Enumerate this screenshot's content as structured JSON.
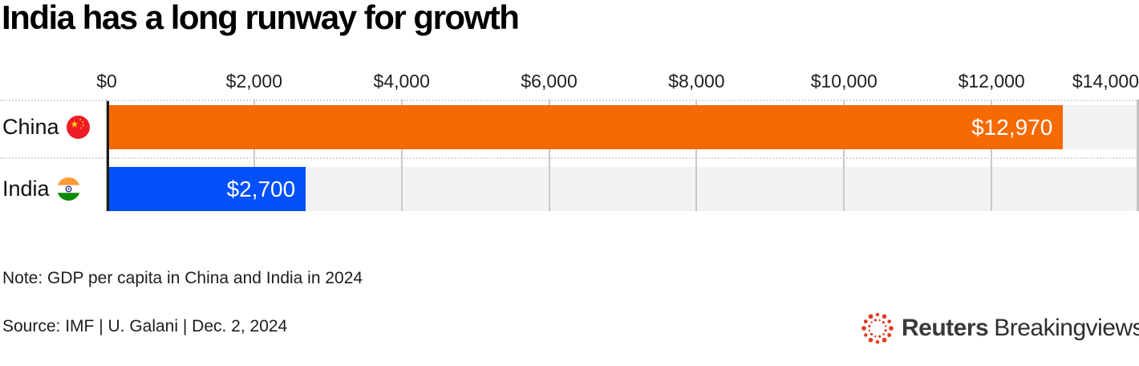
{
  "title": "India has a long runway for growth",
  "chart_data": {
    "type": "bar",
    "orientation": "horizontal",
    "title": "India has a long runway for growth",
    "categories": [
      "China",
      "India"
    ],
    "values": [
      12970,
      2700
    ],
    "value_labels": [
      "$12,970",
      "$2,700"
    ],
    "bar_colors": [
      "#f66a02",
      "#0150fa"
    ],
    "x_ticks": [
      "$0",
      "$2,000",
      "$4,000",
      "$6,000",
      "$8,000",
      "$10,000",
      "$12,000",
      "$14,000"
    ],
    "xlim": [
      0,
      14000
    ],
    "grid": true,
    "legend": "none",
    "note": "GDP per capita in China and India in 2024"
  },
  "rows": [
    {
      "label": "China",
      "flag": "china-flag",
      "value_label": "$12,970"
    },
    {
      "label": "India",
      "flag": "india-flag",
      "value_label": "$2,700"
    }
  ],
  "footer": {
    "note": "Note: GDP per capita in China and India in 2024",
    "source": "Source: IMF | U. Galani | Dec. 2, 2024"
  },
  "logo": {
    "brand": "Reuters",
    "suffix": "Breakingviews",
    "mark_color": "#e03c22"
  },
  "colors": {
    "china_bar": "#f66a02",
    "india_bar": "#0150fa",
    "row_background": "#f2f2f2",
    "gridline": "#c8c8c8",
    "axis_line": "#1a1a1a",
    "value_text": "#ffffff"
  }
}
